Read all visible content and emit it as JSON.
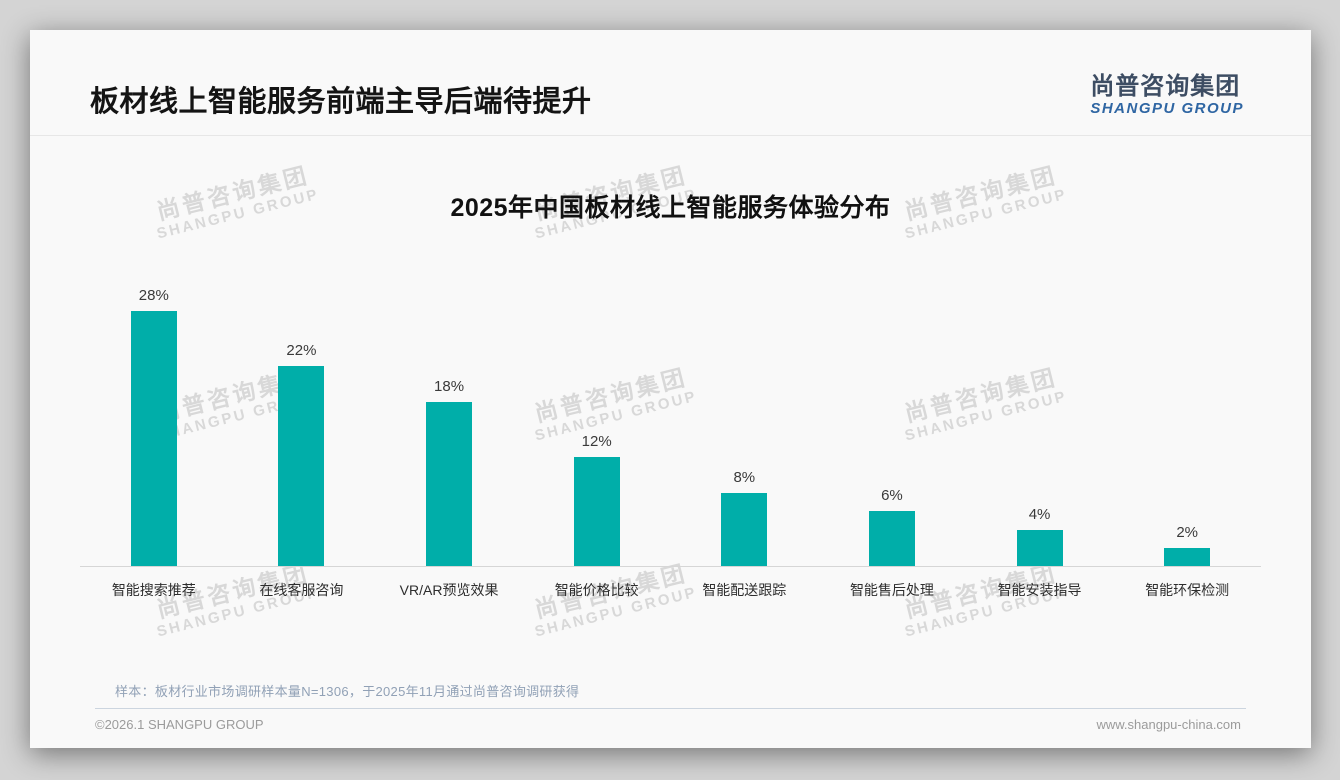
{
  "page": {
    "slide_title": "板材线上智能服务前端主导后端待提升",
    "logo": {
      "cn": "尚普咨询集团",
      "en": "SHANGPU GROUP"
    },
    "watermark": {
      "cn": "尚普咨询集团",
      "en": "SHANGPU GROUP"
    },
    "footnote": "样本：板材行业市场调研样本量N=1306，于2025年11月通过尚普咨询调研获得",
    "footer_left": "©2026.1 SHANGPU GROUP",
    "footer_right": "www.shangpu-china.com"
  },
  "colors": {
    "bar": "#00AEA9",
    "logo_cn": "#3d4d63",
    "logo_en": "#2f66a3",
    "footnote": "#91a1b6"
  },
  "chart_data": {
    "type": "bar",
    "title": "2025年中国板材线上智能服务体验分布",
    "categories": [
      "智能搜索推荐",
      "在线客服咨询",
      "VR/AR预览效果",
      "智能价格比较",
      "智能配送跟踪",
      "智能售后处理",
      "智能安装指导",
      "智能环保检测"
    ],
    "values": [
      28,
      22,
      18,
      12,
      8,
      6,
      4,
      2
    ],
    "data_labels": [
      "28%",
      "22%",
      "18%",
      "12%",
      "8%",
      "6%",
      "4%",
      "2%"
    ],
    "unit": "%",
    "xlabel": "",
    "ylabel": "",
    "ylim": [
      0,
      30
    ],
    "grid": false,
    "legend": "none"
  }
}
